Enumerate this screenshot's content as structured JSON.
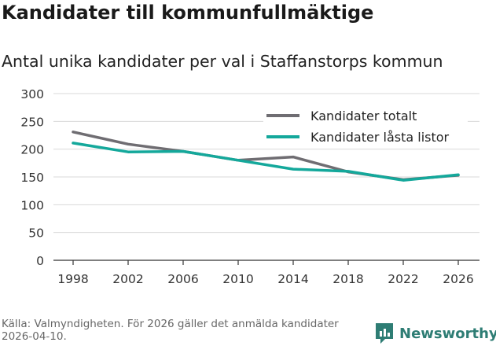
{
  "title": "Kandidater till kommunfullmäktige",
  "subtitle": "Antal unika kandidater per val i Staffanstorps kommun",
  "source": "Källa: Valmyndigheten. För 2026 gäller det anmälda kandidater 2026-04-10.",
  "brand": "Newsworthy",
  "colors": {
    "total": "#6f6d72",
    "locked": "#14a89b",
    "brand": "#2e7d74",
    "grid": "#d9d9d9",
    "axis": "#333333"
  },
  "chart_data": {
    "type": "line",
    "title": "Kandidater till kommunfullmäktige",
    "subtitle": "Antal unika kandidater per val i Staffanstorps kommun",
    "xlabel": "",
    "ylabel": "",
    "categories": [
      "1998",
      "2002",
      "2006",
      "2010",
      "2014",
      "2018",
      "2022",
      "2026"
    ],
    "yticks": [
      "0",
      "50",
      "100",
      "150",
      "200",
      "250",
      "300"
    ],
    "ylim": [
      0,
      300
    ],
    "grid": true,
    "legend_position": "top-right",
    "series": [
      {
        "name": "Kandidater totalt",
        "color": "#6f6d72",
        "values": [
          231,
          209,
          196,
          180,
          186,
          159,
          145,
          153
        ]
      },
      {
        "name": "Kandidater låsta listor",
        "color": "#14a89b",
        "values": [
          211,
          195,
          196,
          180,
          164,
          160,
          144,
          154
        ]
      }
    ]
  }
}
